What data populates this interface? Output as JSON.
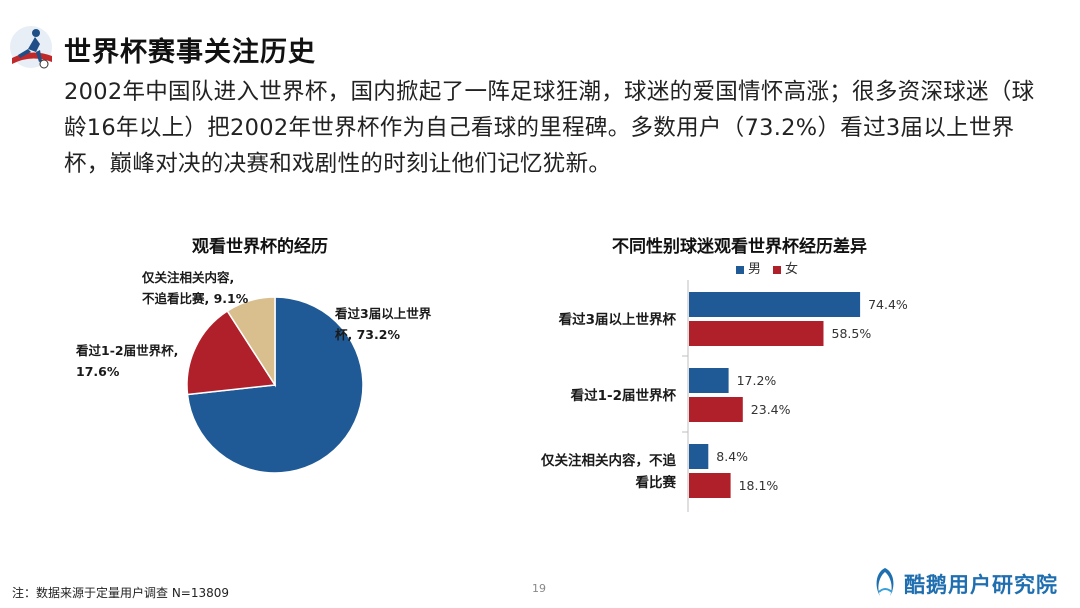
{
  "header": {
    "title": "世界杯赛事关注历史",
    "intro": "2002年中国队进入世界杯，国内掀起了一阵足球狂潮，球迷的爱国情怀高涨；很多资深球迷（球龄16年以上）把2002年世界杯作为自己看球的里程碑。多数用户（73.2%）看过3届以上世界杯，巅峰对决的决赛和戏剧性的时刻让他们记忆犹新。"
  },
  "footer": {
    "note": "注：数据来源于定量用户调查 N=13809",
    "page_number": "19",
    "brand": "酷鹅用户研究院"
  },
  "colors": {
    "blue": "#1f5a96",
    "red": "#b0202a",
    "tan": "#d9be8e"
  },
  "chart_data": [
    {
      "type": "pie",
      "title": "观看世界杯的经历",
      "slices": [
        {
          "label_lines": [
            "看过3届以上世界",
            "杯, 73.2%"
          ],
          "label": "看过3届以上世界杯",
          "value": 73.2,
          "color": "#1f5a96"
        },
        {
          "label_lines": [
            "看过1-2届世界杯,",
            "17.6%"
          ],
          "label": "看过1-2届世界杯",
          "value": 17.6,
          "color": "#b0202a"
        },
        {
          "label_lines": [
            "仅关注相关内容,",
            "不追看比赛, 9.1%"
          ],
          "label": "仅关注相关内容, 不追看比赛",
          "value": 9.1,
          "color": "#d9be8e"
        }
      ]
    },
    {
      "type": "bar",
      "orientation": "horizontal",
      "title": "不同性别球迷观看世界杯经历差异",
      "legend_position": "top",
      "categories": [
        [
          "看过3届以上世界杯"
        ],
        [
          "看过1-2届世界杯"
        ],
        [
          "仅关注相关内容，不追",
          "看比赛"
        ]
      ],
      "series": [
        {
          "name": "男",
          "color": "#1f5a96",
          "values": [
            74.4,
            17.2,
            8.4
          ]
        },
        {
          "name": "女",
          "color": "#b0202a",
          "values": [
            58.5,
            23.4,
            18.1
          ]
        }
      ],
      "value_suffix": "%",
      "xlim": [
        0,
        100
      ]
    }
  ]
}
